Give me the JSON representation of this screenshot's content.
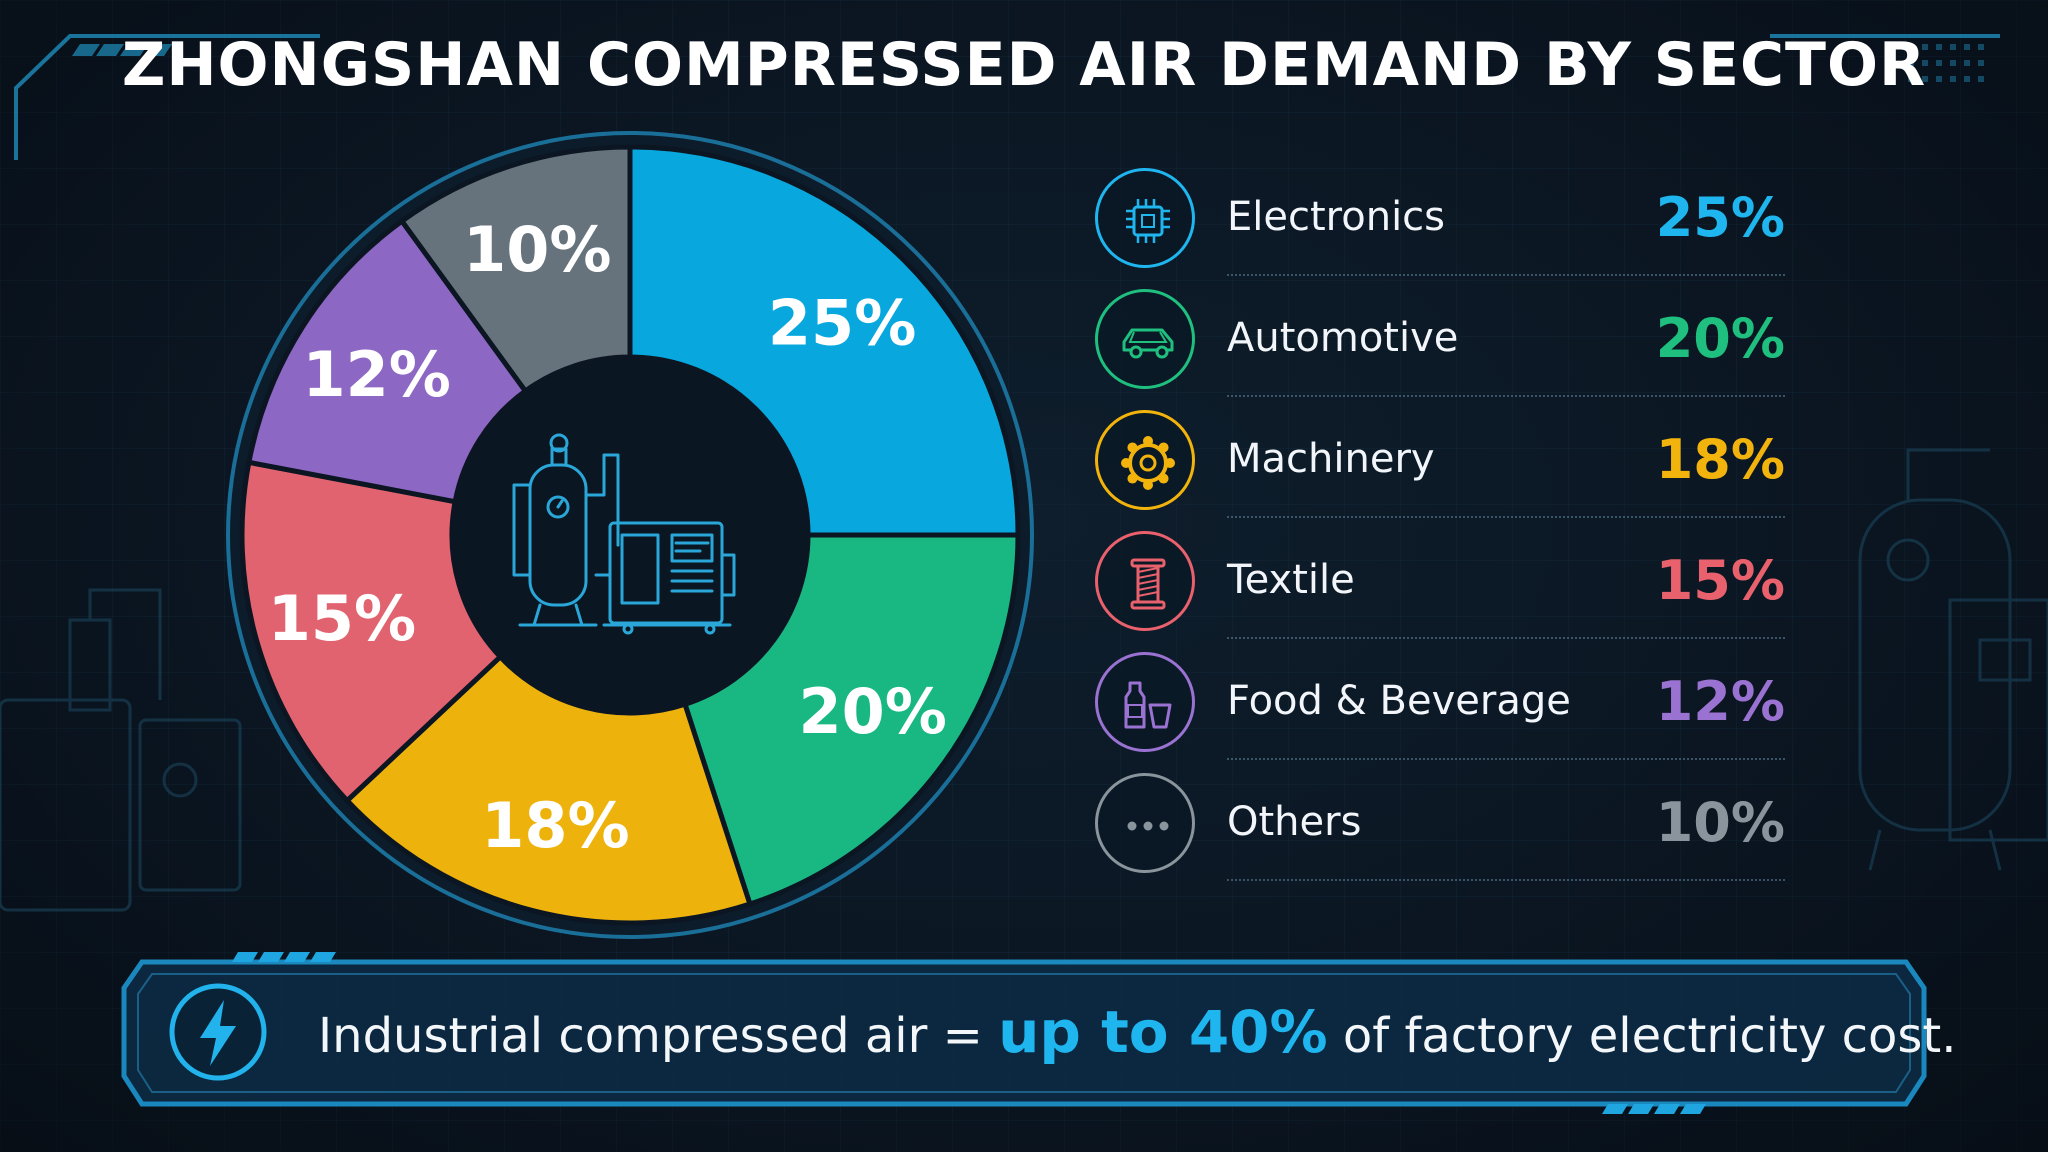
{
  "title": "ZHONGSHAN COMPRESSED AIR DEMAND BY SECTOR",
  "chart_data": {
    "type": "pie",
    "title": "ZHONGSHAN COMPRESSED AIR DEMAND BY SECTOR",
    "categories": [
      "Electronics",
      "Automotive",
      "Machinery",
      "Textile",
      "Food & Beverage",
      "Others"
    ],
    "values": [
      25,
      20,
      18,
      15,
      12,
      10
    ],
    "labels": [
      "25%",
      "20%",
      "18%",
      "15%",
      "12%",
      "10%"
    ],
    "colors": [
      "#08a8df",
      "#19b882",
      "#eeb20d",
      "#e0636f",
      "#8d67c4",
      "#66727c"
    ],
    "legend_placement": "right"
  },
  "legend": [
    {
      "name": "Electronics",
      "value": "25%",
      "color": "#1fb6ef",
      "icon": "chip-icon"
    },
    {
      "name": "Automotive",
      "value": "20%",
      "color": "#1fc07f",
      "icon": "car-icon"
    },
    {
      "name": "Machinery",
      "value": "18%",
      "color": "#f2b40c",
      "icon": "gear-icon"
    },
    {
      "name": "Textile",
      "value": "15%",
      "color": "#e8616c",
      "icon": "thread-spool-icon"
    },
    {
      "name": "Food & Beverage",
      "value": "12%",
      "color": "#9a72d2",
      "icon": "bottle-cup-icon"
    },
    {
      "name": "Others",
      "value": "10%",
      "color": "#8a949c",
      "icon": "more-dots-icon"
    }
  ],
  "banner": {
    "prefix": "Industrial compressed air = ",
    "highlight_a": "up to ",
    "highlight_b": "40%",
    "suffix": " of factory electricity cost."
  },
  "center_icon": "air-compressor-icon"
}
